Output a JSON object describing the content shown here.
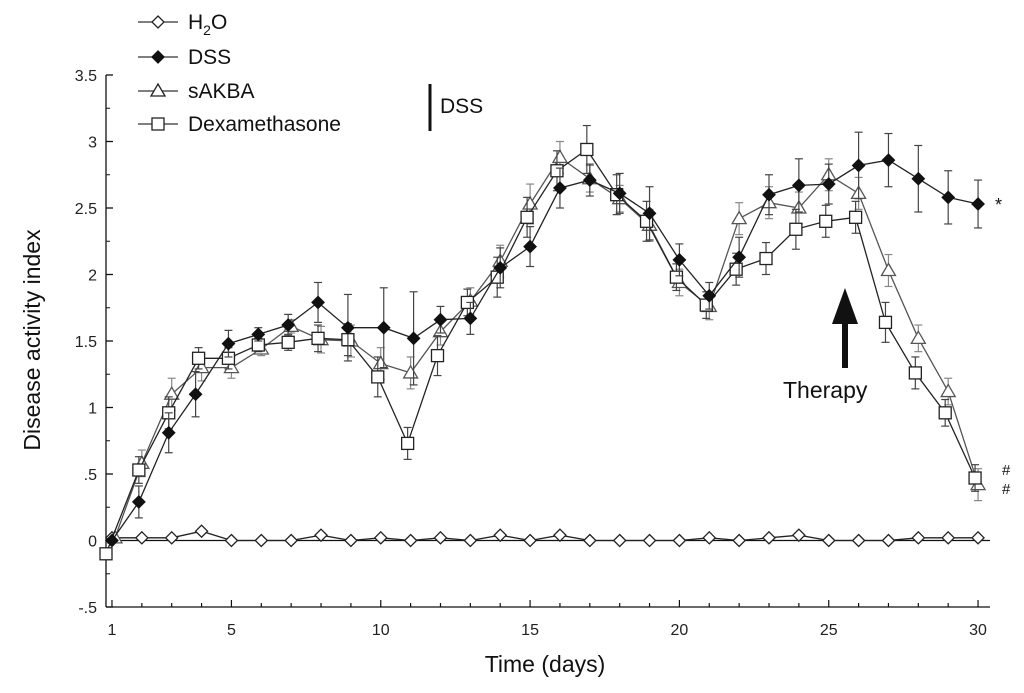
{
  "chart_data": {
    "type": "line",
    "xlabel": "Time (days)",
    "ylabel": "Disease activity index",
    "xlim": [
      0.8,
      30.4
    ],
    "ylim": [
      -0.5,
      3.5
    ],
    "x_ticks": [
      1,
      5,
      10,
      15,
      20,
      25,
      30
    ],
    "x_tick_labels": [
      "1",
      "5",
      "10",
      "15",
      "20",
      "25",
      "30"
    ],
    "y_ticks": [
      -0.5,
      0,
      0.5,
      1,
      1.5,
      2,
      2.5,
      3,
      3.5
    ],
    "y_tick_labels": [
      "-.5",
      "0",
      ".5",
      "1",
      "1.5",
      "2",
      "2.5",
      "3",
      "3.5"
    ],
    "grid": false,
    "legend_position": "top-left",
    "series": [
      {
        "name": "H2O",
        "marker": "diamond-open",
        "x": [
          1,
          2,
          3,
          4,
          5,
          6,
          7,
          8,
          9,
          10,
          11,
          12,
          13,
          14,
          15,
          16,
          17,
          18,
          19,
          20,
          21,
          22,
          23,
          24,
          25,
          26,
          27,
          28,
          29,
          30
        ],
        "y": [
          0.02,
          0.02,
          0.02,
          0.07,
          0.0,
          0.0,
          0.0,
          0.04,
          0.0,
          0.02,
          0.0,
          0.02,
          0.0,
          0.04,
          0.0,
          0.04,
          0.0,
          0.0,
          0.0,
          0.0,
          0.02,
          0.0,
          0.02,
          0.04,
          0.0,
          0.0,
          0.0,
          0.02,
          0.02,
          0.02
        ],
        "err": [
          0,
          0,
          0,
          0,
          0,
          0,
          0,
          0,
          0,
          0,
          0,
          0,
          0,
          0,
          0,
          0,
          0,
          0,
          0,
          0,
          0,
          0,
          0,
          0,
          0,
          0,
          0,
          0,
          0,
          0
        ]
      },
      {
        "name": "DSS",
        "marker": "diamond-filled",
        "x": [
          1,
          1.9,
          2.9,
          3.8,
          4.9,
          5.9,
          6.9,
          7.9,
          8.9,
          10.1,
          11.1,
          12,
          13,
          14,
          15,
          16,
          17,
          18,
          19,
          20,
          21,
          22,
          23,
          24,
          25,
          26,
          27,
          28,
          29,
          30
        ],
        "y": [
          0.0,
          0.29,
          0.81,
          1.1,
          1.48,
          1.55,
          1.62,
          1.79,
          1.6,
          1.6,
          1.52,
          1.66,
          1.67,
          2.05,
          2.21,
          2.65,
          2.71,
          2.61,
          2.46,
          2.11,
          1.84,
          2.13,
          2.6,
          2.67,
          2.68,
          2.82,
          2.86,
          2.72,
          2.58,
          2.53
        ],
        "err": [
          0,
          0.12,
          0.15,
          0.17,
          0.1,
          0.05,
          0.08,
          0.15,
          0.25,
          0.3,
          0.35,
          0.1,
          0.12,
          0.15,
          0.15,
          0.15,
          0.12,
          0.15,
          0.2,
          0.12,
          0.1,
          0.15,
          0.15,
          0.2,
          0.15,
          0.25,
          0.2,
          0.25,
          0.2,
          0.18
        ]
      },
      {
        "name": "sAKBA",
        "marker": "triangle-open",
        "x": [
          1.1,
          2,
          3,
          4,
          5,
          6,
          7,
          8,
          9,
          10,
          11,
          12,
          13,
          14,
          15,
          16,
          17,
          18,
          19,
          20,
          21,
          22,
          23,
          24,
          25,
          26,
          27,
          28,
          29,
          30
        ],
        "y": [
          0.02,
          0.58,
          1.1,
          1.3,
          1.3,
          1.44,
          1.61,
          1.51,
          1.5,
          1.33,
          1.26,
          1.57,
          1.8,
          2.1,
          2.53,
          2.88,
          2.72,
          2.57,
          2.37,
          1.94,
          1.76,
          2.42,
          2.54,
          2.5,
          2.75,
          2.61,
          2.03,
          1.52,
          1.12,
          0.42
        ],
        "err": [
          0,
          0.1,
          0.12,
          0.1,
          0.08,
          0.05,
          0.05,
          0.1,
          0.12,
          0.12,
          0.12,
          0.1,
          0.1,
          0.12,
          0.15,
          0.12,
          0.1,
          0.1,
          0.12,
          0.1,
          0.1,
          0.12,
          0.12,
          0.12,
          0.12,
          0.12,
          0.12,
          0.1,
          0.1,
          0.12
        ]
      },
      {
        "name": "Dexamethasone",
        "marker": "square-open",
        "x": [
          0.8,
          1.9,
          2.9,
          3.9,
          4.9,
          5.9,
          6.9,
          7.9,
          8.9,
          9.9,
          10.9,
          11.9,
          12.9,
          13.9,
          14.9,
          15.9,
          16.9,
          17.9,
          18.9,
          19.9,
          20.9,
          21.9,
          22.9,
          23.9,
          24.9,
          25.9,
          26.9,
          27.9,
          28.9,
          29.9
        ],
        "y": [
          -0.1,
          0.53,
          0.96,
          1.37,
          1.37,
          1.47,
          1.49,
          1.52,
          1.51,
          1.23,
          0.73,
          1.39,
          1.79,
          1.98,
          2.43,
          2.78,
          2.94,
          2.6,
          2.4,
          1.98,
          1.77,
          2.04,
          2.12,
          2.34,
          2.4,
          2.43,
          1.64,
          1.26,
          0.96,
          0.47
        ],
        "err": [
          0,
          0.1,
          0.12,
          0.08,
          0.08,
          0.05,
          0.06,
          0.1,
          0.12,
          0.15,
          0.12,
          0.15,
          0.1,
          0.15,
          0.15,
          0.15,
          0.18,
          0.15,
          0.15,
          0.1,
          0.1,
          0.12,
          0.12,
          0.15,
          0.12,
          0.12,
          0.15,
          0.12,
          0.1,
          0.1
        ]
      }
    ],
    "legend": [
      "H2O",
      "DSS",
      "sAKBA",
      "Dexamethasone"
    ],
    "legend_group_label": "DSS",
    "annotations": {
      "therapy_label": "Therapy",
      "therapy_day": 26,
      "significance_dss": "*",
      "significance_sakba": "#",
      "significance_dexamethasone": "#"
    }
  },
  "legend": {
    "h2o_main": "H",
    "h2o_sub": "2",
    "h2o_tail": "O",
    "dss": "DSS",
    "sakba": "sAKBA",
    "dexamethasone": "Dexamethasone",
    "group": "DSS"
  },
  "annotations": {
    "therapy": "Therapy",
    "star": "*",
    "hash1": "#",
    "hash2": "#"
  },
  "axes": {
    "xlabel": "Time (days)",
    "ylabel": "Disease activity index"
  }
}
